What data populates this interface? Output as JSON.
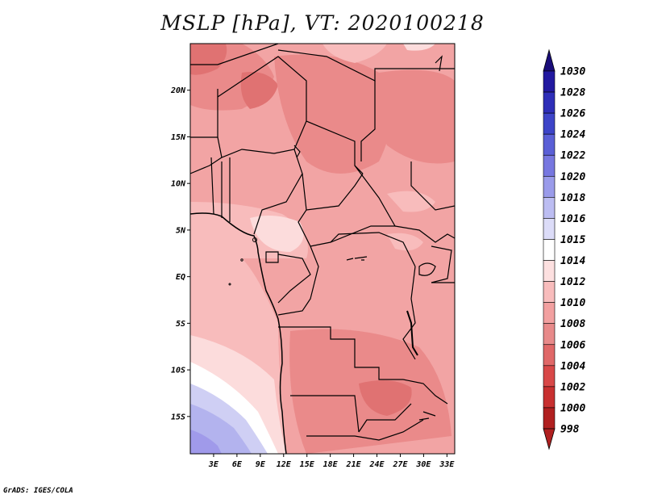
{
  "title": "MSLP [hPa], VT: 2020100218",
  "credit": "GrADS: IGES/COLA",
  "map": {
    "lon_range": [
      0,
      34
    ],
    "lat_range": [
      -19,
      25
    ],
    "lat_ticks": [
      "20N",
      "15N",
      "10N",
      "5N",
      "EQ",
      "5S",
      "10S",
      "15S"
    ],
    "lat_tick_values": [
      20,
      15,
      10,
      5,
      0,
      -5,
      -10,
      -15
    ],
    "lon_ticks": [
      "3E",
      "6E",
      "9E",
      "12E",
      "15E",
      "18E",
      "21E",
      "24E",
      "27E",
      "30E",
      "33E"
    ],
    "lon_tick_values": [
      3,
      6,
      9,
      12,
      15,
      18,
      21,
      24,
      27,
      30,
      33
    ]
  },
  "colorbar": {
    "levels": [
      "1030",
      "1028",
      "1026",
      "1024",
      "1022",
      "1020",
      "1018",
      "1016",
      "1015",
      "1014",
      "1012",
      "1010",
      "1008",
      "1006",
      "1004",
      "1002",
      "1000",
      "998"
    ],
    "colors": [
      "#1a0d7a",
      "#2219a0",
      "#2e2eb8",
      "#3d44c8",
      "#5a5fd6",
      "#7777e0",
      "#9a9bea",
      "#bcbdf2",
      "#dcdcf8",
      "#ffffff",
      "#fde0e0",
      "#f8bcbc",
      "#f2a0a0",
      "#e88a8a",
      "#e06868",
      "#d84848",
      "#c83030",
      "#b02020"
    ]
  },
  "colors": {
    "low_strong": "#e07272",
    "low": "#ea8a8a",
    "mid": "#f2a4a4",
    "mid_light": "#f8bcbc",
    "light": "#fcdcdc",
    "neutral": "#ffffff",
    "blue_light": "#cfcff4",
    "blue": "#b3b3ee",
    "blue_dark": "#a09aea"
  }
}
